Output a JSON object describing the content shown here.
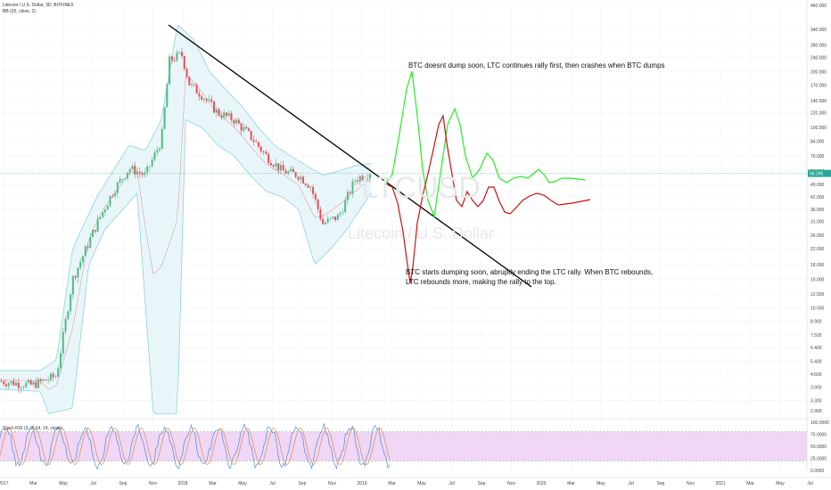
{
  "header": {
    "title": "Litecoin / U.S. Dollar, 3D, BITFINEX",
    "indicator": "BB (20, close, 2)"
  },
  "stoch_header": "Stoch RSI (3, 3, 14, 14, close)",
  "watermark": {
    "symbol": "LTCUSD",
    "name": "Litecoin / U.S. Dollar"
  },
  "annotations": {
    "top": "BTC doesnt dump soon, LTC continues rally first, then crashes when BTC dumps",
    "bottom_line1": "BTC starts dumping soon, abruptly ending the LTC rally. When BTC rebounds,",
    "bottom_line2": "LTC rebounds more, making the rally to the top."
  },
  "current_price": "56.295",
  "colors": {
    "up": "#53b987",
    "down": "#eb4d5c",
    "band": "#8ed3de",
    "bandFill": "#e4f4f7",
    "green_scenario": "#22ee22",
    "red_scenario": "#cc1111",
    "stoch_bg": "#e9c9f2",
    "tag": "#26a69a"
  },
  "chart_data": [
    {
      "type": "candlestick",
      "scale": "log",
      "y_axis_ticks": [
        "460.000",
        "340.000",
        "280.000",
        "240.000",
        "200.000",
        "170.000",
        "140.000",
        "120.000",
        "100.000",
        "84.000",
        "70.000",
        "58.000",
        "49.000",
        "42.000",
        "36.000",
        "31.000",
        "26.000",
        "22.000",
        "18.000",
        "15.000",
        "12.500",
        "10.500",
        "8.900",
        "7.500",
        "6.400",
        "5.400",
        "4.600",
        "3.900",
        "3.300",
        "2.900"
      ],
      "y_axis_values": [
        460,
        340,
        280,
        240,
        200,
        170,
        140,
        120,
        100,
        84,
        70,
        58,
        49,
        42,
        36,
        31,
        26,
        22,
        18,
        15,
        12.5,
        10.5,
        8.9,
        7.5,
        6.4,
        5.4,
        4.6,
        3.9,
        3.3,
        2.9
      ],
      "x_axis_ticks": [
        "2017",
        "Mar",
        "May",
        "Jul",
        "Sep",
        "Nov",
        "2018",
        "Mar",
        "May",
        "Jul",
        "Sep",
        "Nov",
        "2019",
        "Mar",
        "May",
        "Jul",
        "Sep",
        "Nov",
        "2020",
        "Mar",
        "May",
        "Jul",
        "Sep",
        "Nov",
        "2021",
        "Mar",
        "May",
        "Jul"
      ],
      "last_close": 56.295,
      "series": [
        {
          "name": "Price",
          "path": [
            [
              0,
              4.2
            ],
            [
              0.04,
              4.0
            ],
            [
              0.07,
              4.5
            ],
            [
              0.09,
              15
            ],
            [
              0.12,
              30
            ],
            [
              0.14,
              45
            ],
            [
              0.16,
              60
            ],
            [
              0.18,
              55
            ],
            [
              0.2,
              85
            ],
            [
              0.21,
              230
            ],
            [
              0.225,
              250
            ],
            [
              0.235,
              170
            ],
            [
              0.25,
              150
            ],
            [
              0.27,
              120
            ],
            [
              0.29,
              110
            ],
            [
              0.31,
              90
            ],
            [
              0.33,
              70
            ],
            [
              0.35,
              58
            ],
            [
              0.37,
              55
            ],
            [
              0.385,
              48
            ],
            [
              0.4,
              30
            ],
            [
              0.42,
              33
            ],
            [
              0.44,
              52
            ],
            [
              0.46,
              58
            ]
          ]
        },
        {
          "name": "BB Upper",
          "path": [
            [
              0,
              4.8
            ],
            [
              0.05,
              4.8
            ],
            [
              0.07,
              5.5
            ],
            [
              0.09,
              22
            ],
            [
              0.12,
              42
            ],
            [
              0.14,
              58
            ],
            [
              0.16,
              80
            ],
            [
              0.18,
              75
            ],
            [
              0.2,
              110
            ],
            [
              0.22,
              360
            ],
            [
              0.24,
              300
            ],
            [
              0.26,
              200
            ],
            [
              0.28,
              160
            ],
            [
              0.3,
              130
            ],
            [
              0.32,
              100
            ],
            [
              0.34,
              80
            ],
            [
              0.36,
              70
            ],
            [
              0.38,
              62
            ],
            [
              0.4,
              55
            ],
            [
              0.42,
              58
            ],
            [
              0.44,
              62
            ],
            [
              0.46,
              64
            ]
          ]
        },
        {
          "name": "BB Lower",
          "path": [
            [
              0,
              3.8
            ],
            [
              0.05,
              3.7
            ],
            [
              0.06,
              2.8
            ],
            [
              0.09,
              3.0
            ],
            [
              0.11,
              18
            ],
            [
              0.13,
              28
            ],
            [
              0.15,
              35
            ],
            [
              0.17,
              44
            ],
            [
              0.19,
              2.8
            ],
            [
              0.22,
              2.8
            ],
            [
              0.23,
              110
            ],
            [
              0.25,
              100
            ],
            [
              0.27,
              80
            ],
            [
              0.29,
              70
            ],
            [
              0.31,
              55
            ],
            [
              0.33,
              45
            ],
            [
              0.35,
              42
            ],
            [
              0.37,
              36
            ],
            [
              0.39,
              18
            ],
            [
              0.41,
              22
            ],
            [
              0.43,
              28
            ],
            [
              0.45,
              38
            ],
            [
              0.46,
              44
            ]
          ]
        }
      ]
    },
    {
      "type": "line",
      "title": "Stoch RSI",
      "y_axis_ticks": [
        "100.0000",
        "75.0000",
        "50.0000",
        "25.0000",
        "0.0000"
      ],
      "ylim": [
        0,
        100
      ],
      "reference_lines": [
        80,
        20
      ]
    }
  ]
}
